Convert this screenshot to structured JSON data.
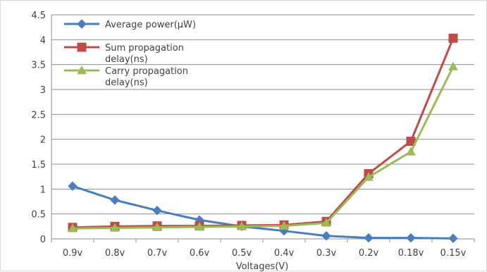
{
  "chart_data": {
    "type": "line",
    "title": "",
    "xlabel": "Voltages(V)",
    "ylabel": "",
    "categories": [
      "0.9v",
      "0.8v",
      "0.7v",
      "0.6v",
      "0.5v",
      "0.4v",
      "0.3v",
      "0.2v",
      "0.18v",
      "0.15v"
    ],
    "y_ticks": [
      "0",
      "0.5",
      "1",
      "1.5",
      "2",
      "2.5",
      "3",
      "3.5",
      "4",
      "4.5"
    ],
    "ylim": [
      0,
      4.5
    ],
    "grid": true,
    "legend_position": "top-left",
    "series": [
      {
        "name": "Average power(μW)",
        "legend_lines": [
          "Average power(μW)"
        ],
        "marker": "diamond",
        "color": "#4a7ebb",
        "values": [
          1.06,
          0.78,
          0.57,
          0.38,
          0.25,
          0.16,
          0.06,
          0.02,
          0.02,
          0.01
        ]
      },
      {
        "name": "Sum propagation delay(ns)",
        "legend_lines": [
          "Sum propagation",
          "delay(ns)"
        ],
        "marker": "square",
        "color": "#be4b48",
        "values": [
          0.23,
          0.25,
          0.26,
          0.26,
          0.27,
          0.28,
          0.35,
          1.31,
          1.96,
          4.03
        ]
      },
      {
        "name": "Carry propagation delay(ns)",
        "legend_lines": [
          "Carry propagation",
          "delay(ns)"
        ],
        "marker": "triangle",
        "color": "#9bbb59",
        "values": [
          0.21,
          0.22,
          0.23,
          0.24,
          0.25,
          0.26,
          0.32,
          1.24,
          1.75,
          3.46
        ]
      }
    ]
  }
}
